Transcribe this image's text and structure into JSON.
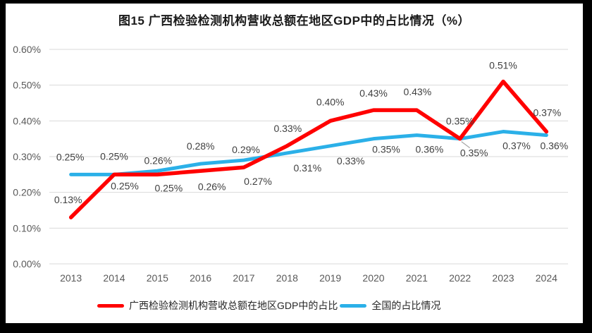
{
  "chart_data": {
    "type": "line",
    "title": "图15 广西检验检测机构营收总额在地区GDP中的占比情况（%）",
    "categories": [
      "2013",
      "2014",
      "2015",
      "2016",
      "2017",
      "2018",
      "2019",
      "2020",
      "2021",
      "2022",
      "2023",
      "2024"
    ],
    "y_ticks": [
      "0.00%",
      "0.10%",
      "0.20%",
      "0.30%",
      "0.40%",
      "0.50%",
      "0.60%"
    ],
    "ylim": [
      0,
      0.6
    ],
    "grid": "horizontal-only",
    "legend_position": "bottom",
    "series": [
      {
        "id": "guangxi",
        "name": "广西检验检测机构营收总额在地区GDP中的占比",
        "color": "#FF0000",
        "values": [
          0.13,
          0.25,
          0.25,
          0.26,
          0.27,
          0.33,
          0.4,
          0.43,
          0.43,
          0.35,
          0.51,
          0.37
        ],
        "labels": [
          "0.13%",
          "0.25%",
          "0.25%",
          "0.26%",
          "0.27%",
          "0.33%",
          "0.40%",
          "0.43%",
          "0.43%",
          "0.35%",
          "0.51%",
          "0.37%"
        ],
        "label_offsets": [
          [
            -4,
            -25
          ],
          [
            15,
            16
          ],
          [
            16,
            19
          ],
          [
            16,
            22
          ],
          [
            20,
            20
          ],
          [
            1,
            -25
          ],
          [
            0,
            -27
          ],
          [
            0,
            -24
          ],
          [
            1,
            -26
          ],
          [
            20,
            20
          ],
          [
            0,
            -23
          ],
          [
            1,
            -27
          ]
        ]
      },
      {
        "id": "national",
        "name": "全国的占比情况",
        "color": "#2BB0E8",
        "values": [
          0.25,
          0.25,
          0.26,
          0.28,
          0.29,
          0.31,
          0.33,
          0.35,
          0.36,
          0.35,
          0.37,
          0.36
        ],
        "labels": [
          "0.25%",
          "0.25%",
          "0.26%",
          "0.28%",
          "0.29%",
          "0.31%",
          "0.33%",
          "0.35%",
          "0.36%",
          "0.35%",
          "0.37%",
          "0.36%"
        ],
        "label_offsets": [
          [
            -1,
            -25
          ],
          [
            0,
            -26
          ],
          [
            1,
            -15
          ],
          [
            0,
            -25
          ],
          [
            3,
            -15
          ],
          [
            29,
            21
          ],
          [
            29,
            21
          ],
          [
            18,
            15
          ],
          [
            18,
            20
          ],
          [
            0,
            -25
          ],
          [
            19,
            20
          ],
          [
            11,
            15
          ]
        ]
      }
    ],
    "moved_label_leader": {
      "series_index": 0,
      "point_index": 9
    },
    "colors": {
      "gridline": "#D9D9D9",
      "axis_text": "#595959",
      "data_label": "#404040",
      "leader": "#A6A6A6"
    }
  }
}
